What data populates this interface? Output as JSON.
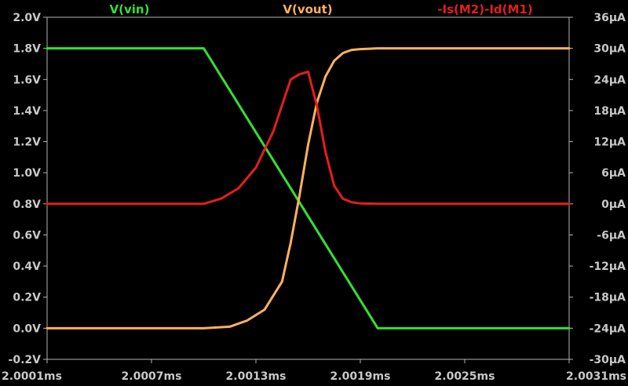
{
  "chart_data": {
    "type": "line",
    "title": "",
    "xlabel": "",
    "ylabel": "",
    "grid": false,
    "legend_placement": "top",
    "x_ticks": [
      "2.0001ms",
      "2.0007ms",
      "2.0013ms",
      "2.0019ms",
      "2.0025ms",
      "2.0031ms"
    ],
    "xlim": [
      2.0001,
      2.0031
    ],
    "left_axis": {
      "ylim": [
        -0.2,
        2.0
      ],
      "ticks": [
        "-0.2V",
        "0.0V",
        "0.2V",
        "0.4V",
        "0.6V",
        "0.8V",
        "1.0V",
        "1.2V",
        "1.4V",
        "1.6V",
        "1.8V",
        "2.0V"
      ]
    },
    "right_axis": {
      "ylim": [
        -30,
        36
      ],
      "ticks": [
        "-30µA",
        "-24µA",
        "-18µA",
        "-12µA",
        "-6µA",
        "0µA",
        "6µA",
        "12µA",
        "18µA",
        "24µA",
        "30µA",
        "36µA"
      ]
    },
    "series": [
      {
        "name": "V(vin)",
        "color": "#32e132",
        "axis": "left",
        "x": [
          2.0001,
          2.001,
          2.002,
          2.0031
        ],
        "y": [
          1.8,
          1.8,
          0.0,
          0.0
        ]
      },
      {
        "name": "V(vout)",
        "color": "#ffb060",
        "axis": "left",
        "x": [
          2.0001,
          2.001,
          2.00115,
          2.00125,
          2.00135,
          2.00145,
          2.0015,
          2.00155,
          2.0016,
          2.00165,
          2.0017,
          2.00175,
          2.0018,
          2.00185,
          2.0019,
          2.002,
          2.0031
        ],
        "y": [
          0.0,
          0.0,
          0.01,
          0.05,
          0.12,
          0.3,
          0.55,
          0.85,
          1.18,
          1.45,
          1.62,
          1.72,
          1.77,
          1.79,
          1.795,
          1.8,
          1.8
        ]
      },
      {
        "name": "-Is(M2)-Id(M1)",
        "color": "#e41e1e",
        "axis": "right",
        "x": [
          2.0001,
          2.001,
          2.0011,
          2.0012,
          2.0013,
          2.0014,
          2.0015,
          2.00155,
          2.0016,
          2.00165,
          2.0017,
          2.00175,
          2.0018,
          2.00185,
          2.0019,
          2.002,
          2.0031
        ],
        "y": [
          0,
          0,
          1,
          3,
          7,
          14,
          24,
          25,
          25.5,
          19,
          10,
          3.5,
          1,
          0.3,
          0.1,
          0,
          0
        ]
      }
    ]
  }
}
